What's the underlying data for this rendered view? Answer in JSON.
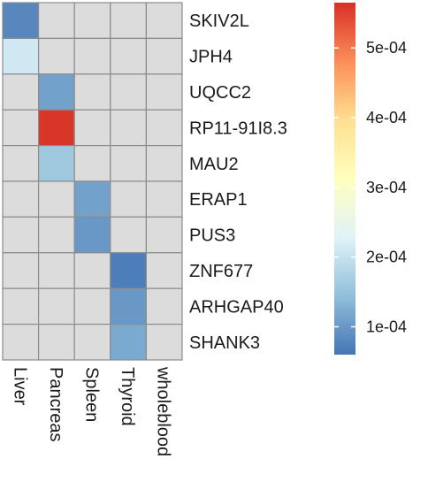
{
  "chart_data": {
    "type": "heatmap",
    "title": "",
    "xlabel": "",
    "ylabel": "",
    "columns": [
      "Liver",
      "Pancreas",
      "Spleen",
      "Thyroid",
      "wholeblood"
    ],
    "rows": [
      "SKIV2L",
      "JPH4",
      "UQCC2",
      "RP11-91I8.3",
      "MAU2",
      "ERAP1",
      "PUS3",
      "ZNF677",
      "ARHGAP40",
      "SHANK3"
    ],
    "cells": [
      {
        "row": "SKIV2L",
        "column": "Liver",
        "value": 8e-05
      },
      {
        "row": "JPH4",
        "column": "Liver",
        "value": 0.00021
      },
      {
        "row": "UQCC2",
        "column": "Pancreas",
        "value": 0.00011
      },
      {
        "row": "RP11-91I8.3",
        "column": "Pancreas",
        "value": 0.00056
      },
      {
        "row": "MAU2",
        "column": "Pancreas",
        "value": 0.00016
      },
      {
        "row": "ERAP1",
        "column": "Spleen",
        "value": 0.00011
      },
      {
        "row": "PUS3",
        "column": "Spleen",
        "value": 0.0001
      },
      {
        "row": "ZNF677",
        "column": "Thyroid",
        "value": 7e-05
      },
      {
        "row": "ARHGAP40",
        "column": "Thyroid",
        "value": 0.0001
      },
      {
        "row": "SHANK3",
        "column": "Thyroid",
        "value": 0.00012
      }
    ],
    "missing_color": "#dcdcdc",
    "colorbar": {
      "range": [
        6e-05,
        0.000565
      ],
      "ticks": [
        {
          "value": 0.0001,
          "label": "1e-04"
        },
        {
          "value": 0.0002,
          "label": "2e-04"
        },
        {
          "value": 0.0003,
          "label": "3e-04"
        },
        {
          "value": 0.0004,
          "label": "4e-04"
        },
        {
          "value": 0.0005,
          "label": "5e-04"
        }
      ],
      "colors": [
        "#4575b4",
        "#91bfdb",
        "#e0f3f8",
        "#ffffbf",
        "#fee090",
        "#fc8d59",
        "#d73027"
      ]
    }
  }
}
